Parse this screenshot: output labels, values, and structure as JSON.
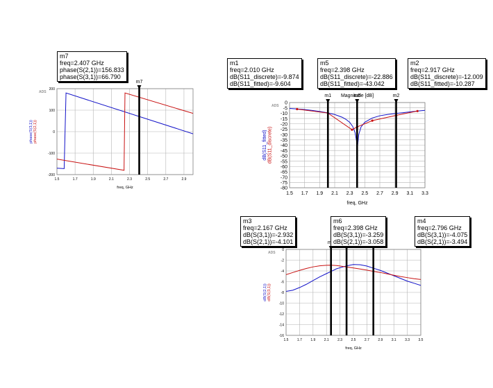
{
  "palette": {
    "blue": "#1010c8",
    "red": "#c81010",
    "grid": "#b4b4b4",
    "frame": "#000000"
  },
  "charts": [
    {
      "id": "phase",
      "logo": "ADS",
      "xlabel": "freq, GHz",
      "ylabel_lines": [
        {
          "text": "phase(S(3,1))",
          "color": "#1010c8"
        },
        {
          "text": "phase(S(2,1))",
          "color": "#c81010"
        }
      ],
      "x_ticks": [
        "1.5",
        "1.7",
        "1.9",
        "2.1",
        "2.3",
        "2.5",
        "2.7",
        "2.9"
      ],
      "y_ticks": [
        "200",
        "100",
        "0",
        "-100",
        "-200"
      ],
      "markers": [
        {
          "name": "m7"
        }
      ],
      "boxes": [
        {
          "name": "m7",
          "lines": [
            "m7",
            "freq=2.407 GHz",
            "phase(S(2,1))=156.833",
            "phase(S(3,1))=66.790"
          ]
        }
      ]
    },
    {
      "id": "magnitude",
      "logo": "ADS",
      "title": "Magnitude [dB]",
      "xlabel": "freq, GHz",
      "ylabel_lines": [
        {
          "text": "dB(S11_fitted)",
          "color": "#1010c8"
        },
        {
          "text": "dB(S11_discrete)",
          "color": "#c81010"
        }
      ],
      "x_ticks": [
        "1.5",
        "1.7",
        "1.9",
        "2.1",
        "2.3",
        "2.5",
        "2.7",
        "2.9",
        "3.1",
        "3.3"
      ],
      "y_ticks": [
        "0",
        "-5",
        "-10",
        "-15",
        "-20",
        "-25",
        "-30",
        "-35",
        "-40",
        "-45",
        "-50",
        "-55",
        "-60",
        "-65",
        "-70",
        "-75",
        "-80"
      ],
      "markers": [
        {
          "name": "m1"
        },
        {
          "name": "m5"
        },
        {
          "name": "m2"
        }
      ],
      "boxes": [
        {
          "name": "m1",
          "lines": [
            "m1",
            "freq=2.010 GHz",
            "dB(S11_discrete)=-9.874",
            "dB(S11_fitted)=-9.604"
          ]
        },
        {
          "name": "m5",
          "lines": [
            "m5",
            "freq=2.398 GHz",
            "dB(S11_discrete)=-22.886",
            "dB(S11_fitted)=-43.042"
          ]
        },
        {
          "name": "m2",
          "lines": [
            "m2",
            "freq=2.917 GHz",
            "dB(S11_discrete)=-12.009",
            "dB(S11_fitted)=-10.287"
          ]
        }
      ]
    },
    {
      "id": "transmission",
      "logo": "ADS",
      "xlabel": "freq, GHz",
      "ylabel_lines": [
        {
          "text": "dB(S(2,1))",
          "color": "#1010c8"
        },
        {
          "text": "dB(S(3,1))",
          "color": "#c81010"
        }
      ],
      "x_ticks": [
        "1.5",
        "1.7",
        "1.9",
        "2.1",
        "2.3",
        "2.5",
        "2.7",
        "2.9",
        "3.1",
        "3.3",
        "3.5"
      ],
      "y_ticks": [
        "0",
        "-2",
        "-4",
        "-6",
        "-8",
        "-10",
        "-12",
        "-14",
        "-16"
      ],
      "markers": [
        {
          "name": "m3"
        },
        {
          "name": "m6"
        },
        {
          "name": "m4"
        }
      ],
      "boxes": [
        {
          "name": "m3",
          "lines": [
            "m3",
            "freq=2.167 GHz",
            "dB(S(3,1))=-2.932",
            "dB(S(2,1))=-4.101"
          ]
        },
        {
          "name": "m6",
          "lines": [
            "m6",
            "freq=2.398 GHz",
            "dB(S(3,1))=-3.259",
            "dB(S(2,1))=-3.058"
          ]
        },
        {
          "name": "m4",
          "lines": [
            "m4",
            "freq=2.796 GHz",
            "dB(S(3,1))=-4.075",
            "dB(S(2,1))=-3.494"
          ]
        }
      ]
    }
  ],
  "chart_data": [
    {
      "type": "line",
      "xlabel": "freq, GHz",
      "ylabel": "phase(S(3,1)), phase(S(2,1))",
      "xlim": [
        1.5,
        3.0
      ],
      "ylim": [
        -200,
        200
      ],
      "grid": true,
      "series": [
        {
          "name": "phase(S(3,1))",
          "color": "#1010c8",
          "x": [
            1.5,
            1.58,
            1.58,
            1.6,
            3.0
          ],
          "y": [
            -170,
            -172,
            -165,
            180,
            -10
          ]
        },
        {
          "name": "phase(S(2,1))",
          "color": "#c81010",
          "x": [
            1.5,
            2.24,
            2.24,
            2.25,
            3.0
          ],
          "y": [
            -128,
            -180,
            -165,
            180,
            85
          ]
        }
      ],
      "markers": [
        {
          "name": "m7",
          "x": 2.407
        }
      ]
    },
    {
      "type": "line",
      "title": "Magnitude [dB]",
      "xlabel": "freq, GHz",
      "ylabel": "dB(S11_fitted), dB(S11_discrete)",
      "xlim": [
        1.5,
        3.3
      ],
      "ylim": [
        -80,
        0
      ],
      "grid": true,
      "series": [
        {
          "name": "dB(S11_fitted)",
          "color": "#1010c8",
          "x": [
            1.5,
            1.6,
            1.7,
            1.8,
            1.9,
            2.0,
            2.1,
            2.2,
            2.25,
            2.3,
            2.34,
            2.37,
            2.39,
            2.398,
            2.405,
            2.42,
            2.45,
            2.5,
            2.6,
            2.7,
            2.8,
            2.9,
            3.0,
            3.1,
            3.2,
            3.3
          ],
          "y": [
            -5.5,
            -6,
            -6.6,
            -7.4,
            -8.4,
            -9.6,
            -11.2,
            -13.8,
            -15.8,
            -18.6,
            -22.5,
            -28,
            -36,
            -43.04,
            -40,
            -30,
            -23,
            -18.5,
            -14.5,
            -12.4,
            -11.2,
            -10.3,
            -9.6,
            -8.8,
            -8.0,
            -7.3
          ]
        },
        {
          "name": "dB(S11_discrete)",
          "color": "#c81010",
          "x": [
            1.6,
            2.01,
            2.33,
            2.398,
            2.6,
            2.917,
            3.2
          ],
          "y": [
            -6.2,
            -9.874,
            -25.5,
            -22.886,
            -17,
            -12.009,
            -8.0
          ]
        }
      ],
      "markers": [
        {
          "name": "m1",
          "x": 2.01
        },
        {
          "name": "m5",
          "x": 2.398
        },
        {
          "name": "m2",
          "x": 2.917
        }
      ]
    },
    {
      "type": "line",
      "xlabel": "freq, GHz",
      "ylabel": "dB(S(2,1)), dB(S(3,1))",
      "xlim": [
        1.5,
        3.5
      ],
      "ylim": [
        -16,
        0
      ],
      "grid": true,
      "series": [
        {
          "name": "dB(S(2,1))",
          "color": "#1010c8",
          "x": [
            1.5,
            1.6,
            1.7,
            1.8,
            1.9,
            2.0,
            2.1,
            2.167,
            2.25,
            2.398,
            2.5,
            2.6,
            2.7,
            2.796,
            2.9,
            3.0,
            3.1,
            3.2,
            3.3,
            3.4,
            3.5
          ],
          "y": [
            -7.8,
            -7.6,
            -7.1,
            -6.5,
            -5.8,
            -5.1,
            -4.5,
            -4.101,
            -3.6,
            -3.058,
            -2.8,
            -2.85,
            -3.1,
            -3.494,
            -3.9,
            -4.4,
            -4.9,
            -5.4,
            -5.9,
            -6.3,
            -6.7
          ]
        },
        {
          "name": "dB(S(3,1))",
          "color": "#c81010",
          "x": [
            1.5,
            1.6,
            1.7,
            1.8,
            1.9,
            2.0,
            2.1,
            2.167,
            2.25,
            2.398,
            2.5,
            2.6,
            2.7,
            2.796,
            2.9,
            3.0,
            3.1,
            3.2,
            3.3,
            3.4,
            3.5
          ],
          "y": [
            -4.7,
            -4.3,
            -3.9,
            -3.55,
            -3.25,
            -3.05,
            -2.95,
            -2.932,
            -3.0,
            -3.259,
            -3.45,
            -3.65,
            -3.85,
            -4.075,
            -4.3,
            -4.55,
            -4.8,
            -5.05,
            -5.25,
            -5.45,
            -5.6
          ]
        }
      ],
      "markers": [
        {
          "name": "m3",
          "x": 2.167
        },
        {
          "name": "m6",
          "x": 2.398
        },
        {
          "name": "m4",
          "x": 2.796
        }
      ]
    }
  ]
}
